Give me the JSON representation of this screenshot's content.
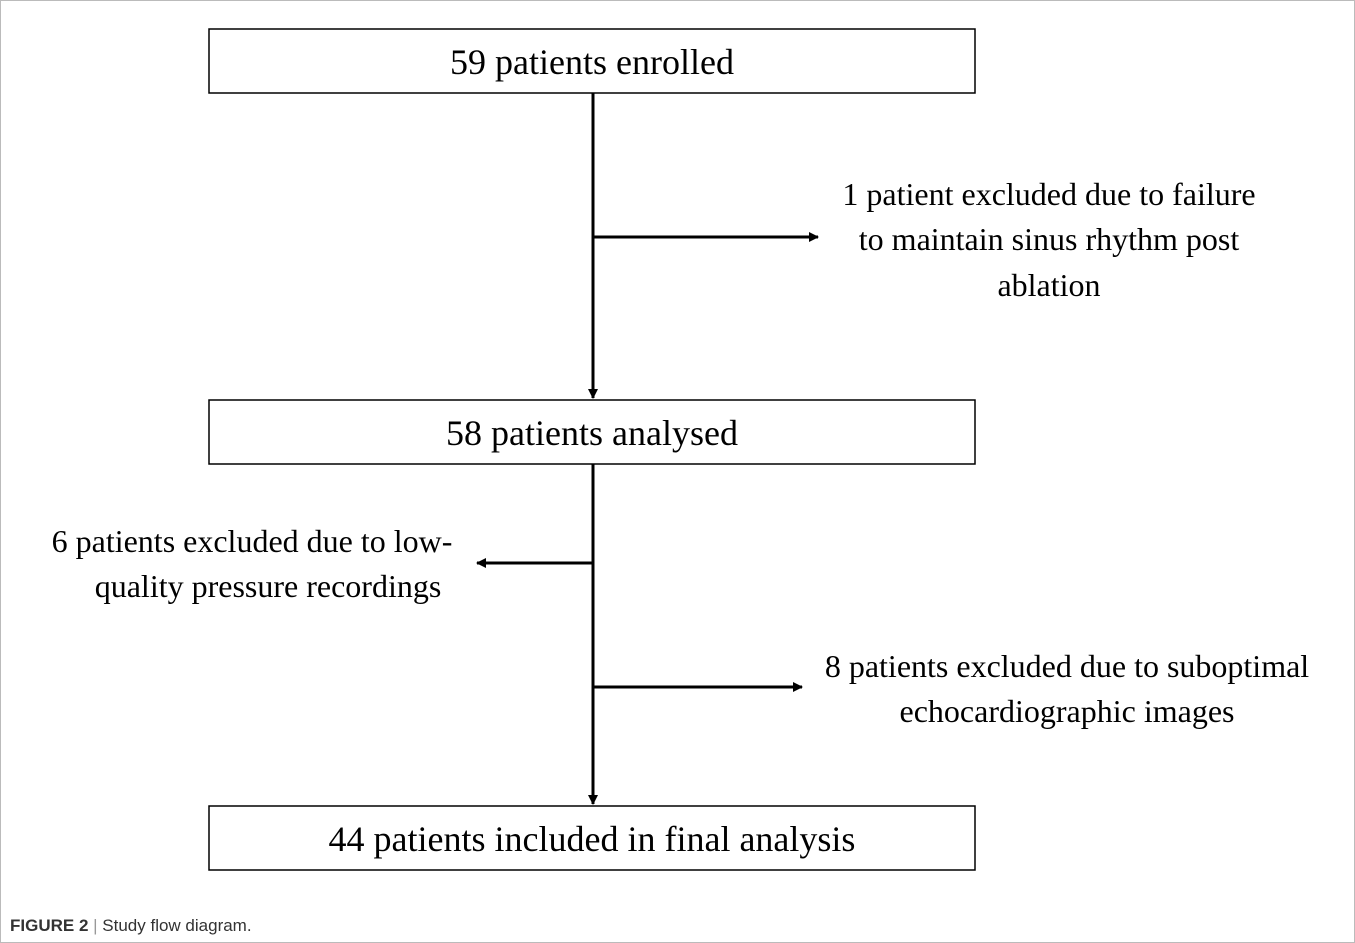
{
  "nodes": [
    {
      "label": "59 patients enrolled"
    },
    {
      "label": "58 patients analysed"
    },
    {
      "label": "44 patients included in final analysis"
    }
  ],
  "exclusions": [
    {
      "lines": [
        "1 patient excluded due to failure",
        "to maintain sinus rhythm post",
        "ablation"
      ]
    },
    {
      "lines": [
        "6 patients excluded due to low-",
        "quality pressure recordings"
      ]
    },
    {
      "lines": [
        "8 patients excluded due to suboptimal",
        "echocardiographic images"
      ]
    }
  ],
  "caption": {
    "label": "FIGURE 2",
    "text": "Study flow diagram."
  }
}
